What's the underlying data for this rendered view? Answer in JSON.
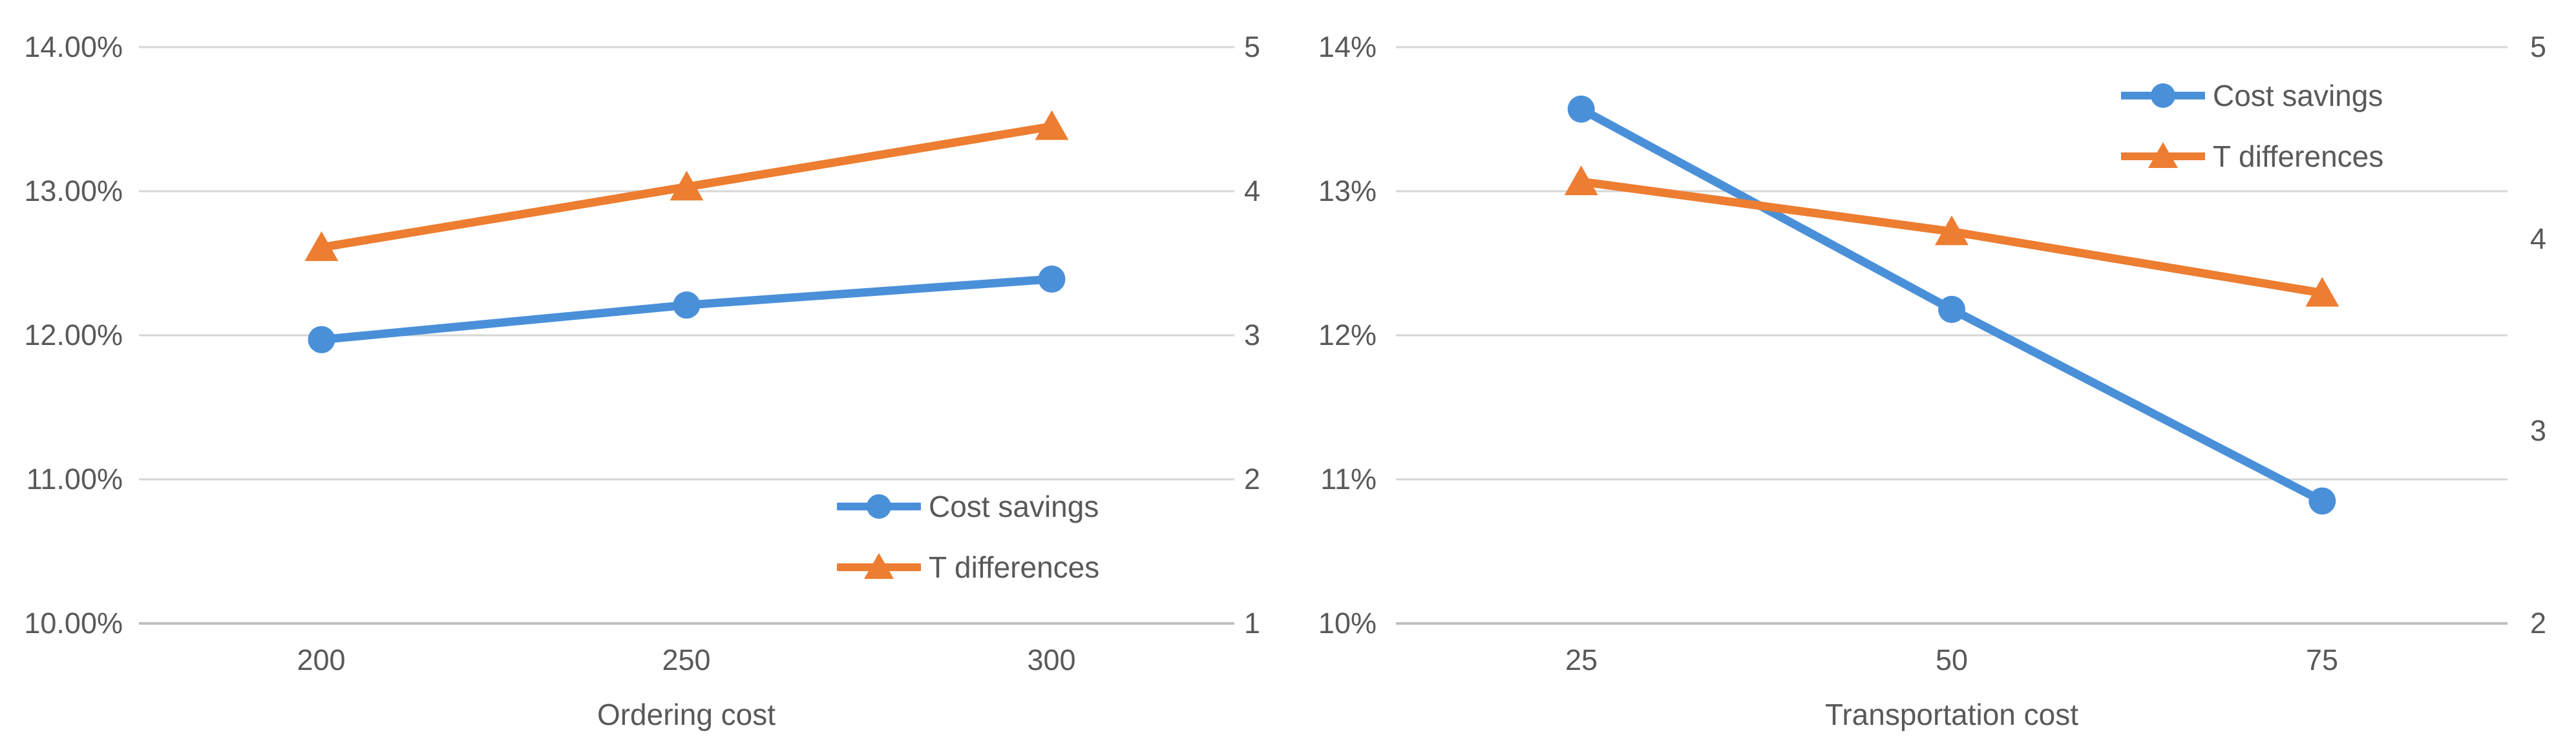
{
  "colors": {
    "cost_savings": "#4A90D9",
    "t_differences": "#ED7D31",
    "gridline": "#D6D6D6",
    "axis_line": "#BFBFBF",
    "label_text": "#595959",
    "background": "#FFFFFF"
  },
  "chart_data": [
    {
      "type": "line",
      "title": "",
      "xlabel": "Ordering cost",
      "ylabel": "",
      "categories": [
        200,
        250,
        300
      ],
      "x_labels": [
        "200",
        "250",
        "300"
      ],
      "grid": true,
      "legend_position": "inside-bottom-right",
      "y_left": {
        "min": 10,
        "max": 14,
        "format": "percent",
        "labels": [
          "14.00%",
          "13.00%",
          "12.00%",
          "11.00%",
          "10.00%"
        ]
      },
      "y_right": {
        "min": 1,
        "max": 5,
        "labels": [
          "5",
          "4",
          "3",
          "2",
          "1"
        ]
      },
      "series": [
        {
          "name": "Cost savings",
          "axis": "primary",
          "marker": "circle",
          "color": "#4A90D9",
          "values": [
            11.97,
            12.21,
            12.39
          ]
        },
        {
          "name": "T differences",
          "axis": "secondary",
          "marker": "triangle",
          "color": "#ED7D31",
          "values": [
            3.61,
            4.03,
            4.45
          ]
        }
      ]
    },
    {
      "type": "line",
      "title": "",
      "xlabel": "Transportation cost",
      "ylabel": "",
      "categories": [
        25,
        50,
        75
      ],
      "x_labels": [
        "25",
        "50",
        "75"
      ],
      "grid": true,
      "legend_position": "top-right",
      "y_left": {
        "min": 10,
        "max": 14,
        "format": "percent",
        "labels": [
          "14%",
          "13%",
          "12%",
          "11%",
          "10%"
        ]
      },
      "y_right": {
        "min": 2,
        "max": 5,
        "labels": [
          "5",
          "4",
          "3",
          "2"
        ]
      },
      "series": [
        {
          "name": "Cost savings",
          "axis": "primary",
          "marker": "circle",
          "color": "#4A90D9",
          "values": [
            13.57,
            12.18,
            10.85
          ]
        },
        {
          "name": "T differences",
          "axis": "secondary",
          "marker": "triangle",
          "color": "#ED7D31",
          "values": [
            4.3,
            4.04,
            3.72
          ]
        }
      ]
    }
  ]
}
